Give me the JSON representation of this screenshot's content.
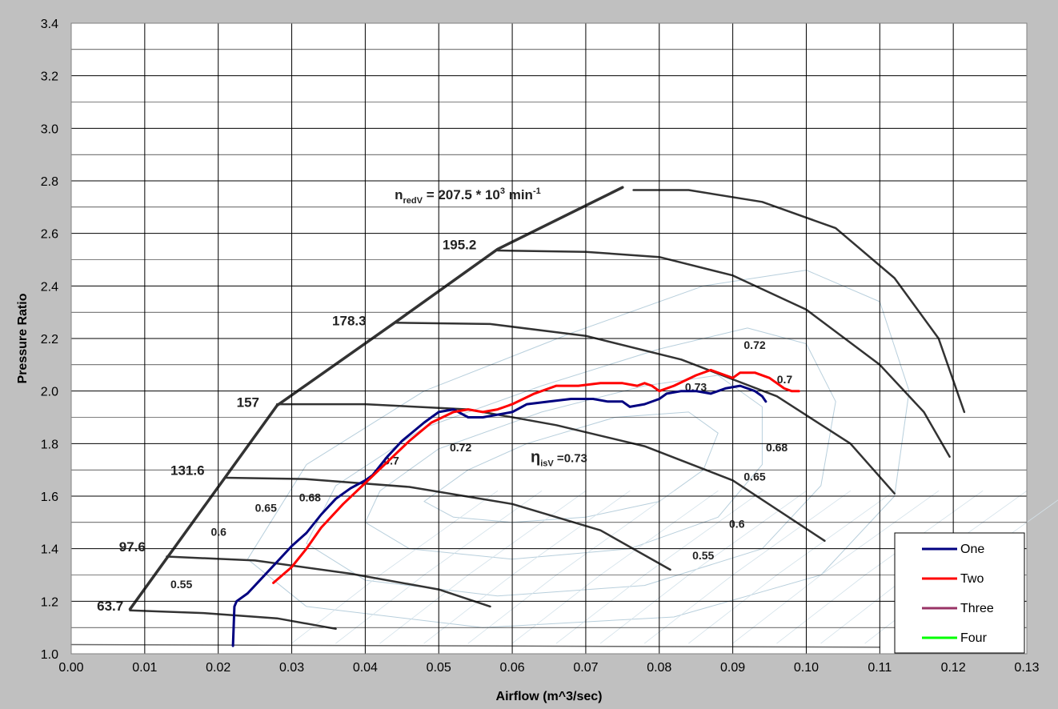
{
  "chart_data": {
    "type": "line",
    "title": "",
    "xlabel": "Airflow (m^3/sec)",
    "ylabel": "Pressure Ratio",
    "xlim": [
      0.0,
      0.13
    ],
    "ylim": [
      1.0,
      3.4
    ],
    "xticks": [
      0.0,
      0.01,
      0.02,
      0.03,
      0.04,
      0.05,
      0.06,
      0.07,
      0.08,
      0.09,
      0.1,
      0.11,
      0.12,
      0.13
    ],
    "yticks": [
      1.0,
      1.2,
      1.4,
      1.6,
      1.8,
      2.0,
      2.2,
      2.4,
      2.6,
      2.8,
      3.0,
      3.2,
      3.4
    ],
    "xtick_labels": [
      "0.00",
      "0.01",
      "0.02",
      "0.03",
      "0.04",
      "0.05",
      "0.06",
      "0.07",
      "0.08",
      "0.09",
      "0.10",
      "0.11",
      "0.12",
      "0.13"
    ],
    "ytick_labels": [
      "1.0",
      "1.2",
      "1.4",
      "1.6",
      "1.8",
      "2.0",
      "2.2",
      "2.4",
      "2.6",
      "2.8",
      "3.0",
      "3.2",
      "3.4"
    ],
    "grid": true,
    "legend_position": "bottom-right",
    "series": [
      {
        "name": "One",
        "color": "#000080",
        "width": 3,
        "x": [
          0.022,
          0.0222,
          0.0225,
          0.024,
          0.026,
          0.028,
          0.03,
          0.032,
          0.034,
          0.036,
          0.038,
          0.04,
          0.041,
          0.043,
          0.045,
          0.048,
          0.05,
          0.052,
          0.054,
          0.056,
          0.058,
          0.06,
          0.062,
          0.065,
          0.068,
          0.071,
          0.073,
          0.075,
          0.076,
          0.078,
          0.08,
          0.081,
          0.083,
          0.085,
          0.087,
          0.089,
          0.091,
          0.092,
          0.093,
          0.094,
          0.0945
        ],
        "y": [
          1.03,
          1.18,
          1.2,
          1.23,
          1.29,
          1.35,
          1.41,
          1.46,
          1.53,
          1.59,
          1.63,
          1.66,
          1.68,
          1.75,
          1.81,
          1.88,
          1.92,
          1.93,
          1.9,
          1.9,
          1.91,
          1.92,
          1.95,
          1.96,
          1.97,
          1.97,
          1.96,
          1.96,
          1.94,
          1.95,
          1.97,
          1.99,
          2.0,
          2.0,
          1.99,
          2.01,
          2.02,
          2.01,
          2.0,
          1.98,
          1.96
        ]
      },
      {
        "name": "Two",
        "color": "#ff0000",
        "width": 3,
        "x": [
          0.0275,
          0.03,
          0.032,
          0.034,
          0.037,
          0.04,
          0.043,
          0.046,
          0.049,
          0.052,
          0.054,
          0.056,
          0.058,
          0.06,
          0.063,
          0.066,
          0.069,
          0.072,
          0.075,
          0.077,
          0.078,
          0.079,
          0.08,
          0.082,
          0.085,
          0.087,
          0.089,
          0.09,
          0.091,
          0.093,
          0.095,
          0.096,
          0.097,
          0.098,
          0.099
        ],
        "y": [
          1.27,
          1.33,
          1.4,
          1.48,
          1.57,
          1.65,
          1.73,
          1.81,
          1.88,
          1.92,
          1.93,
          1.92,
          1.93,
          1.95,
          1.99,
          2.02,
          2.02,
          2.03,
          2.03,
          2.02,
          2.03,
          2.02,
          2.0,
          2.02,
          2.06,
          2.08,
          2.06,
          2.05,
          2.07,
          2.07,
          2.05,
          2.03,
          2.01,
          2.0,
          2.0
        ]
      },
      {
        "name": "Three",
        "color": "#993366",
        "width": 3,
        "x": [],
        "y": []
      },
      {
        "name": "Four",
        "color": "#00ff00",
        "width": 3,
        "x": [],
        "y": []
      }
    ],
    "annotations": [
      {
        "text": "63.7",
        "x": 0.0035,
        "y": 1.165,
        "size": 17
      },
      {
        "text": "97.6",
        "x": 0.0065,
        "y": 1.39,
        "size": 17
      },
      {
        "text": "131.6",
        "x": 0.0135,
        "y": 1.68,
        "size": 17
      },
      {
        "text": "157",
        "x": 0.0225,
        "y": 1.94,
        "size": 17
      },
      {
        "text": "178.3",
        "x": 0.0355,
        "y": 2.25,
        "size": 17
      },
      {
        "text": "195.2",
        "x": 0.0505,
        "y": 2.54,
        "size": 17
      },
      {
        "text": "0.55",
        "x": 0.0135,
        "y": 1.25,
        "size": 14
      },
      {
        "text": "0.6",
        "x": 0.019,
        "y": 1.45,
        "size": 14
      },
      {
        "text": "0.65",
        "x": 0.025,
        "y": 1.54,
        "size": 14
      },
      {
        "text": "0.68",
        "x": 0.031,
        "y": 1.58,
        "size": 14
      },
      {
        "text": "0.7",
        "x": 0.0425,
        "y": 1.72,
        "size": 14
      },
      {
        "text": "0.72",
        "x": 0.0515,
        "y": 1.77,
        "size": 14
      },
      {
        "text": "0.72",
        "x": 0.0915,
        "y": 2.16,
        "size": 14
      },
      {
        "text": "0.73",
        "x": 0.0835,
        "y": 2.0,
        "size": 14
      },
      {
        "text": "0.7",
        "x": 0.096,
        "y": 2.03,
        "size": 14
      },
      {
        "text": "0.68",
        "x": 0.0945,
        "y": 1.77,
        "size": 14
      },
      {
        "text": "0.65",
        "x": 0.0915,
        "y": 1.66,
        "size": 14
      },
      {
        "text": "0.6",
        "x": 0.0895,
        "y": 1.48,
        "size": 14
      },
      {
        "text": "0.55",
        "x": 0.0845,
        "y": 1.36,
        "size": 14
      }
    ],
    "speed_label": {
      "n": "n",
      "sub": "redV",
      "mid": " = 207.5 * 10",
      "sup_exp": "3",
      "unit": " min",
      "sup_unit": "-1",
      "x": 0.044,
      "y": 2.73
    },
    "efficiency_label": {
      "eta": "η",
      "sub": "isV",
      "rest": " =0.73",
      "x": 0.0625,
      "y": 1.73
    }
  }
}
